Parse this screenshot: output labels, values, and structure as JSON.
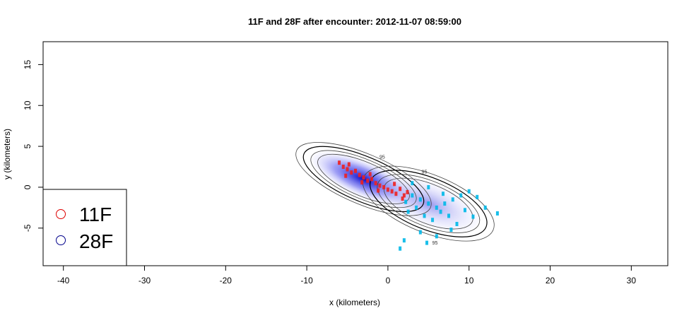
{
  "chart_data": {
    "type": "scatter",
    "title": "11F and 28F after encounter: 2012-11-07 08:59:00",
    "xlabel": "x (kilometers)",
    "ylabel": "y (kilometers)",
    "xlim": [
      -42.5,
      34.5
    ],
    "ylim": [
      -9.6,
      17.8
    ],
    "xticks": [
      -40,
      -30,
      -20,
      -10,
      0,
      10,
      20,
      30
    ],
    "yticks": [
      -5,
      0,
      5,
      10,
      15
    ],
    "grid": false,
    "legend_position": "bottom-left",
    "legend": [
      {
        "name": "11F",
        "color": "#dd0000"
      },
      {
        "name": "28F",
        "color": "#00008b"
      }
    ],
    "contour_labels": [
      "95",
      "95",
      "95"
    ],
    "series": [
      {
        "name": "11F",
        "color": "#ee2020",
        "density_center": [
          -3.0,
          1.0
        ],
        "points": [
          [
            -5.5,
            2.5
          ],
          [
            -5.0,
            2.2
          ],
          [
            -4.5,
            1.8
          ],
          [
            -4.0,
            2.0
          ],
          [
            -3.5,
            1.5
          ],
          [
            -3.0,
            1.2
          ],
          [
            -2.5,
            0.8
          ],
          [
            -2.0,
            1.0
          ],
          [
            -1.5,
            0.5
          ],
          [
            -1.0,
            0.2
          ],
          [
            -0.5,
            0.0
          ],
          [
            0.0,
            -0.3
          ],
          [
            0.5,
            -0.5
          ],
          [
            1.0,
            -0.8
          ],
          [
            1.5,
            -0.2
          ],
          [
            2.0,
            -1.0
          ],
          [
            -6.0,
            3.0
          ],
          [
            -4.8,
            2.8
          ],
          [
            -3.2,
            0.6
          ],
          [
            -2.2,
            1.6
          ],
          [
            0.8,
            0.4
          ],
          [
            1.8,
            -1.4
          ],
          [
            -1.2,
            -0.4
          ],
          [
            2.4,
            -0.6
          ],
          [
            -5.2,
            1.4
          ]
        ]
      },
      {
        "name": "28F",
        "color": "#00b8e8",
        "density_center": [
          5.0,
          -2.0
        ],
        "points": [
          [
            3.0,
            -1.0
          ],
          [
            4.0,
            -1.5
          ],
          [
            5.0,
            -2.0
          ],
          [
            6.0,
            -2.5
          ],
          [
            7.0,
            -2.0
          ],
          [
            8.0,
            -1.5
          ],
          [
            9.0,
            -1.0
          ],
          [
            4.5,
            -3.5
          ],
          [
            5.5,
            -4.0
          ],
          [
            6.5,
            -3.0
          ],
          [
            3.5,
            -2.5
          ],
          [
            2.5,
            -3.0
          ],
          [
            7.5,
            -3.5
          ],
          [
            10.0,
            -0.5
          ],
          [
            11.0,
            -1.2
          ],
          [
            12.0,
            -2.5
          ],
          [
            13.5,
            -3.2
          ],
          [
            2.0,
            -6.5
          ],
          [
            1.5,
            -7.5
          ],
          [
            6.0,
            -6.0
          ],
          [
            8.5,
            -4.5
          ],
          [
            4.0,
            -5.5
          ],
          [
            5.0,
            0.0
          ],
          [
            3.0,
            0.5
          ],
          [
            9.5,
            -2.8
          ],
          [
            6.8,
            -0.8
          ],
          [
            2.2,
            -1.8
          ],
          [
            7.8,
            -5.2
          ],
          [
            10.5,
            -3.6
          ],
          [
            4.8,
            -6.8
          ]
        ]
      }
    ]
  }
}
